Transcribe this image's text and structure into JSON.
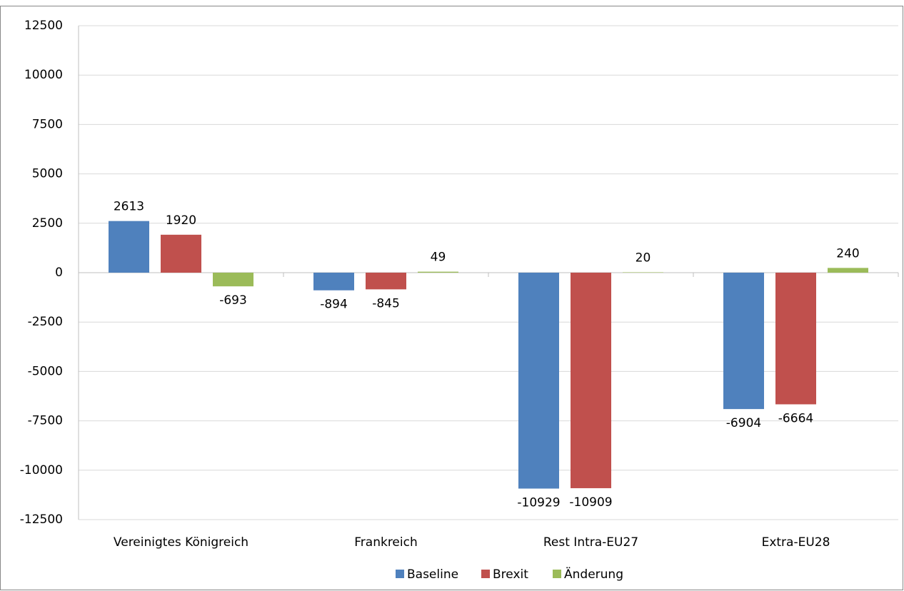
{
  "chart_data": {
    "type": "bar",
    "categories": [
      "Vereinigtes Königreich",
      "Frankreich",
      "Rest Intra-EU27",
      "Extra-EU28"
    ],
    "series": [
      {
        "name": "Baseline",
        "color": "#4f81bd",
        "values": [
          2613,
          -894,
          -10929,
          -6904
        ]
      },
      {
        "name": "Brexit",
        "color": "#c0504d",
        "values": [
          1920,
          -845,
          -10909,
          -6664
        ]
      },
      {
        "name": "Änderung",
        "color": "#9bbb59",
        "values": [
          -693,
          49,
          20,
          240
        ]
      }
    ],
    "ylim": [
      -12500,
      12500
    ],
    "yticks": [
      -12500,
      -10000,
      -7500,
      -5000,
      -2500,
      0,
      2500,
      5000,
      7500,
      10000,
      12500
    ],
    "grid": true,
    "legend": "bottom"
  }
}
